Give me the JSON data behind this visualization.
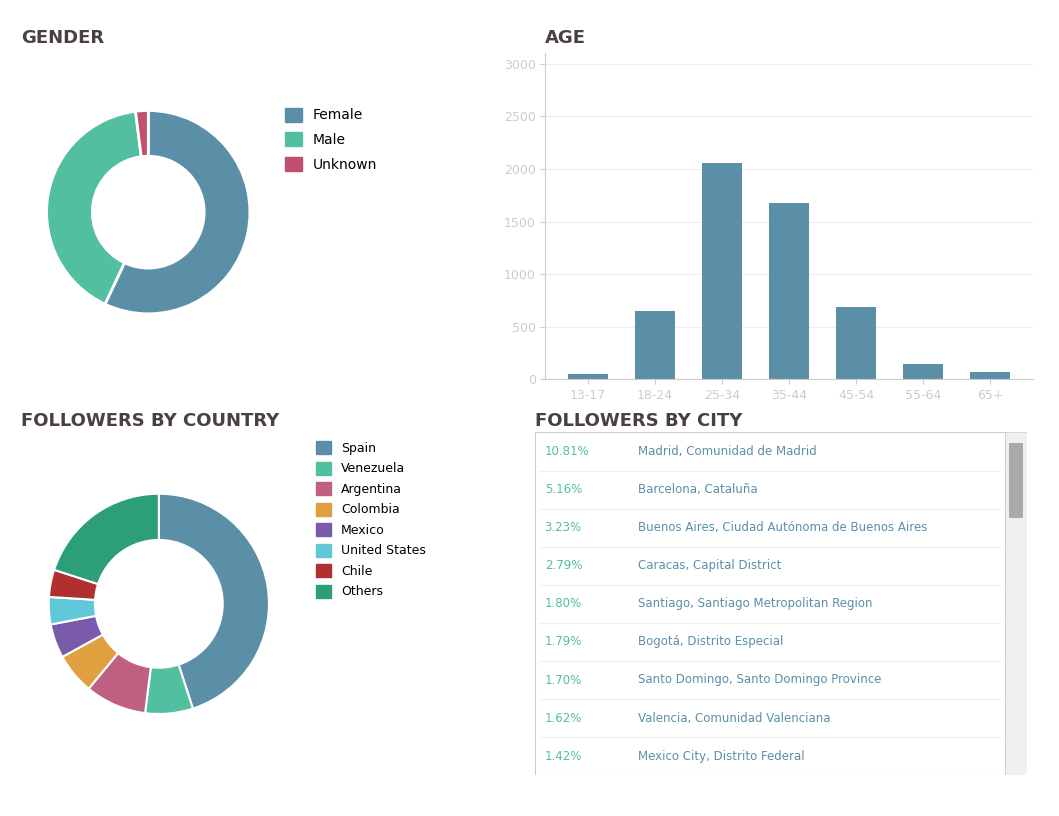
{
  "gender_labels": [
    "Female",
    "Male",
    "Unknown"
  ],
  "gender_values": [
    57,
    41,
    2
  ],
  "gender_colors": [
    "#5b8fa8",
    "#52bfa0",
    "#c0506e"
  ],
  "age_categories": [
    "13-17",
    "18-24",
    "25-34",
    "35-44",
    "45-54",
    "55-64",
    "65+"
  ],
  "age_values": [
    50,
    650,
    2060,
    1680,
    685,
    150,
    70
  ],
  "age_color": "#5b8fa8",
  "country_labels": [
    "Spain",
    "Venezuela",
    "Argentina",
    "Colombia",
    "Mexico",
    "United States",
    "Chile",
    "Others"
  ],
  "country_values": [
    45,
    7,
    9,
    6,
    5,
    4,
    4,
    20
  ],
  "country_colors": [
    "#5b8fa8",
    "#52bfa0",
    "#c06080",
    "#e0a040",
    "#7a5aaa",
    "#60c8d8",
    "#b03030",
    "#2d9e7a"
  ],
  "city_percentages": [
    "10.81%",
    "5.16%",
    "3.23%",
    "2.79%",
    "1.80%",
    "1.79%",
    "1.70%",
    "1.62%",
    "1.42%"
  ],
  "city_names": [
    "Madrid, Comunidad de Madrid",
    "Barcelona, Cataluña",
    "Buenos Aires, Ciudad Autónoma de Buenos Aires",
    "Caracas, Capital District",
    "Santiago, Santiago Metropolitan Region",
    "Bogotá, Distrito Especial",
    "Santo Domingo, Santo Domingo Province",
    "Valencia, Comunidad Valenciana",
    "Mexico City, Distrito Federal"
  ],
  "city_pct_color": "#52bfa0",
  "city_name_color": "#5b8fa8",
  "title_color": "#4a4040",
  "background_color": "#ffffff",
  "section_title_fontsize": 13,
  "section_title_weight": "bold"
}
